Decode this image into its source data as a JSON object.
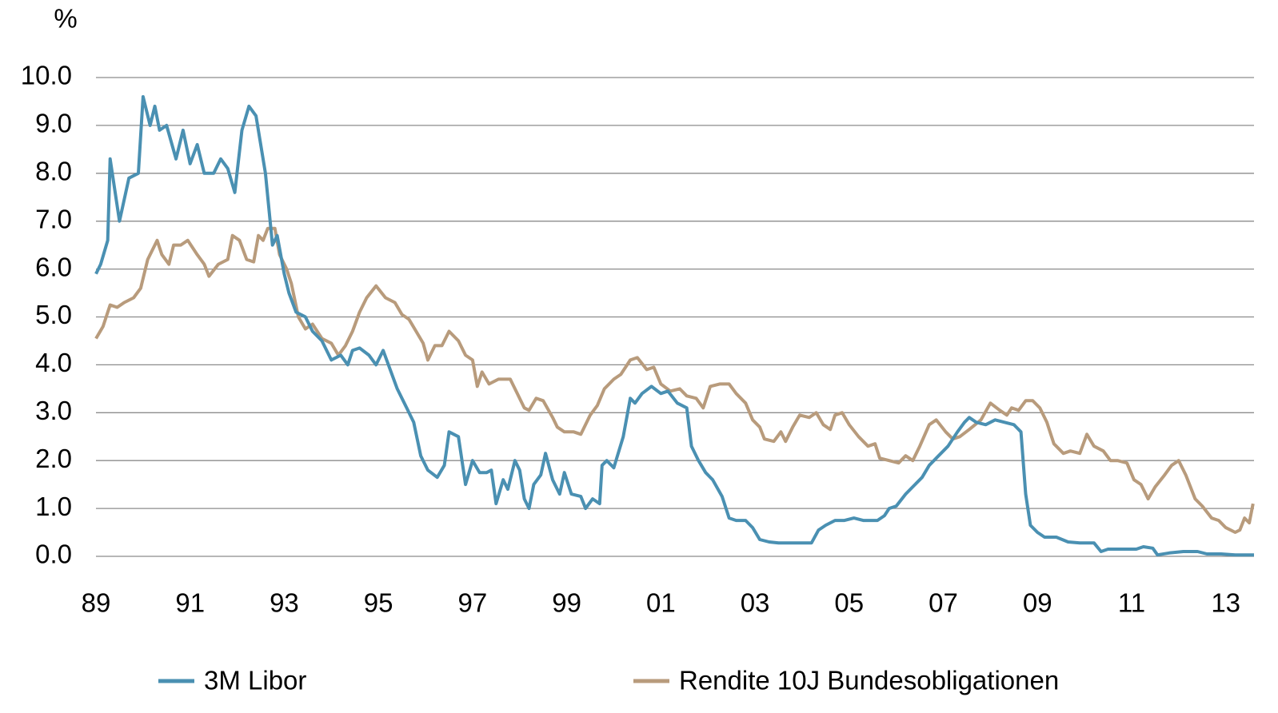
{
  "chart_data": {
    "type": "line",
    "ylabel": "%",
    "xlim": [
      1989,
      2013.6
    ],
    "xticks": [
      {
        "value": 1989,
        "label": "89"
      },
      {
        "value": 1991,
        "label": "91"
      },
      {
        "value": 1993,
        "label": "93"
      },
      {
        "value": 1995,
        "label": "95"
      },
      {
        "value": 1997,
        "label": "97"
      },
      {
        "value": 1999,
        "label": "99"
      },
      {
        "value": 2001,
        "label": "01"
      },
      {
        "value": 2003,
        "label": "03"
      },
      {
        "value": 2005,
        "label": "05"
      },
      {
        "value": 2007,
        "label": "07"
      },
      {
        "value": 2009,
        "label": "09"
      },
      {
        "value": 2011,
        "label": "11"
      },
      {
        "value": 2013,
        "label": "13"
      }
    ],
    "ylim": [
      0,
      10
    ],
    "yticks": [
      {
        "value": 0,
        "label": "0.0"
      },
      {
        "value": 1,
        "label": "1.0"
      },
      {
        "value": 2,
        "label": "2.0"
      },
      {
        "value": 3,
        "label": "3.0"
      },
      {
        "value": 4,
        "label": "4.0"
      },
      {
        "value": 5,
        "label": "5.0"
      },
      {
        "value": 6,
        "label": "6.0"
      },
      {
        "value": 7,
        "label": "7.0"
      },
      {
        "value": 8,
        "label": "8.0"
      },
      {
        "value": 9,
        "label": "9.0"
      },
      {
        "value": 10,
        "label": "10.0"
      }
    ],
    "grid": true,
    "legend": "bottom",
    "series": [
      {
        "name": "3M Libor",
        "color": "#4a90b2",
        "x": [
          1989.0,
          1989.1,
          1989.25,
          1989.3,
          1989.5,
          1989.7,
          1989.9,
          1990.0,
          1990.15,
          1990.25,
          1990.35,
          1990.5,
          1990.7,
          1990.85,
          1991.0,
          1991.15,
          1991.3,
          1991.5,
          1991.65,
          1991.8,
          1991.95,
          1992.1,
          1992.25,
          1992.4,
          1992.6,
          1992.75,
          1992.85,
          1993.0,
          1993.1,
          1993.25,
          1993.45,
          1993.6,
          1993.8,
          1994.0,
          1994.2,
          1994.35,
          1994.45,
          1994.6,
          1994.8,
          1994.95,
          1995.1,
          1995.25,
          1995.4,
          1995.6,
          1995.75,
          1995.9,
          1996.05,
          1996.25,
          1996.4,
          1996.5,
          1996.7,
          1996.85,
          1997.0,
          1997.15,
          1997.3,
          1997.4,
          1997.5,
          1997.65,
          1997.75,
          1997.9,
          1998.0,
          1998.1,
          1998.2,
          1998.3,
          1998.45,
          1998.55,
          1998.7,
          1998.85,
          1998.95,
          1999.1,
          1999.3,
          1999.4,
          1999.55,
          1999.7,
          1999.75,
          1999.85,
          2000.0,
          2000.2,
          2000.35,
          2000.45,
          2000.6,
          2000.8,
          2001.0,
          2001.15,
          2001.35,
          2001.55,
          2001.65,
          2001.8,
          2001.95,
          2002.1,
          2002.3,
          2002.45,
          2002.6,
          2002.8,
          2002.95,
          2003.1,
          2003.3,
          2003.5,
          2003.8,
          2004.2,
          2004.35,
          2004.5,
          2004.7,
          2004.9,
          2005.1,
          2005.3,
          2005.6,
          2005.75,
          2005.85,
          2006.0,
          2006.2,
          2006.4,
          2006.55,
          2006.7,
          2006.9,
          2007.1,
          2007.3,
          2007.45,
          2007.55,
          2007.7,
          2007.9,
          2008.1,
          2008.3,
          2008.5,
          2008.65,
          2008.75,
          2008.85,
          2009.0,
          2009.15,
          2009.4,
          2009.65,
          2009.9,
          2010.2,
          2010.35,
          2010.5,
          2010.8,
          2011.1,
          2011.25,
          2011.45,
          2011.55,
          2011.8,
          2012.1,
          2012.4,
          2012.6,
          2012.9,
          2013.2,
          2013.6
        ],
        "values": [
          5.9,
          6.1,
          6.6,
          8.3,
          7.0,
          7.9,
          8.0,
          9.6,
          9.0,
          9.4,
          8.9,
          9.0,
          8.3,
          8.9,
          8.2,
          8.6,
          8.0,
          8.0,
          8.3,
          8.1,
          7.6,
          8.9,
          9.4,
          9.2,
          8.0,
          6.5,
          6.7,
          5.9,
          5.5,
          5.1,
          5.0,
          4.7,
          4.5,
          4.1,
          4.2,
          4.0,
          4.3,
          4.35,
          4.2,
          4.0,
          4.3,
          3.9,
          3.5,
          3.1,
          2.8,
          2.1,
          1.8,
          1.65,
          1.9,
          2.6,
          2.5,
          1.5,
          2.0,
          1.75,
          1.75,
          1.8,
          1.1,
          1.6,
          1.4,
          2.0,
          1.8,
          1.2,
          1.0,
          1.5,
          1.7,
          2.15,
          1.6,
          1.3,
          1.75,
          1.3,
          1.25,
          1.0,
          1.2,
          1.1,
          1.9,
          2.0,
          1.85,
          2.5,
          3.3,
          3.2,
          3.4,
          3.55,
          3.4,
          3.45,
          3.2,
          3.1,
          2.3,
          2.0,
          1.75,
          1.6,
          1.25,
          0.8,
          0.75,
          0.75,
          0.6,
          0.35,
          0.3,
          0.28,
          0.28,
          0.28,
          0.55,
          0.65,
          0.75,
          0.75,
          0.8,
          0.75,
          0.75,
          0.85,
          1.0,
          1.05,
          1.3,
          1.5,
          1.65,
          1.9,
          2.1,
          2.3,
          2.6,
          2.8,
          2.9,
          2.8,
          2.75,
          2.85,
          2.8,
          2.75,
          2.6,
          1.3,
          0.65,
          0.5,
          0.4,
          0.4,
          0.3,
          0.28,
          0.28,
          0.1,
          0.15,
          0.15,
          0.15,
          0.2,
          0.17,
          0.03,
          0.07,
          0.1,
          0.1,
          0.05,
          0.05,
          0.03,
          0.03
        ]
      },
      {
        "name": "Rendite 10J Bundesobligationen",
        "color": "#b89b7c",
        "x": [
          1989.0,
          1989.15,
          1989.3,
          1989.45,
          1989.6,
          1989.8,
          1989.95,
          1990.1,
          1990.3,
          1990.4,
          1990.55,
          1990.65,
          1990.8,
          1990.95,
          1991.15,
          1991.3,
          1991.4,
          1991.6,
          1991.8,
          1991.9,
          1992.05,
          1992.2,
          1992.35,
          1992.45,
          1992.55,
          1992.65,
          1992.8,
          1992.9,
          1993.05,
          1993.15,
          1993.3,
          1993.45,
          1993.6,
          1993.8,
          1994.0,
          1994.15,
          1994.3,
          1994.45,
          1994.6,
          1994.75,
          1994.95,
          1995.15,
          1995.35,
          1995.5,
          1995.65,
          1995.8,
          1995.95,
          1996.05,
          1996.2,
          1996.35,
          1996.5,
          1996.7,
          1996.85,
          1997.0,
          1997.1,
          1997.2,
          1997.35,
          1997.55,
          1997.8,
          1997.95,
          1998.1,
          1998.2,
          1998.35,
          1998.5,
          1998.7,
          1998.8,
          1998.95,
          1999.15,
          1999.3,
          1999.5,
          1999.65,
          1999.8,
          2000.0,
          2000.15,
          2000.35,
          2000.5,
          2000.7,
          2000.85,
          2001.0,
          2001.2,
          2001.4,
          2001.55,
          2001.75,
          2001.9,
          2002.05,
          2002.25,
          2002.45,
          2002.6,
          2002.8,
          2002.95,
          2003.1,
          2003.2,
          2003.4,
          2003.55,
          2003.65,
          2003.8,
          2003.95,
          2004.15,
          2004.3,
          2004.45,
          2004.6,
          2004.7,
          2004.85,
          2005.0,
          2005.2,
          2005.4,
          2005.55,
          2005.65,
          2005.85,
          2006.05,
          2006.2,
          2006.35,
          2006.5,
          2006.7,
          2006.85,
          2007.05,
          2007.2,
          2007.35,
          2007.55,
          2007.8,
          2008.0,
          2008.2,
          2008.35,
          2008.45,
          2008.6,
          2008.75,
          2008.9,
          2009.05,
          2009.2,
          2009.35,
          2009.55,
          2009.7,
          2009.9,
          2010.05,
          2010.2,
          2010.4,
          2010.55,
          2010.7,
          2010.9,
          2011.05,
          2011.2,
          2011.35,
          2011.5,
          2011.7,
          2011.85,
          2012.0,
          2012.15,
          2012.35,
          2012.5,
          2012.7,
          2012.85,
          2013.0,
          2013.2,
          2013.3,
          2013.4,
          2013.5,
          2013.58
        ],
        "values": [
          4.55,
          4.8,
          5.25,
          5.2,
          5.3,
          5.4,
          5.6,
          6.2,
          6.6,
          6.3,
          6.1,
          6.5,
          6.5,
          6.6,
          6.3,
          6.1,
          5.85,
          6.1,
          6.2,
          6.7,
          6.6,
          6.2,
          6.15,
          6.7,
          6.6,
          6.85,
          6.85,
          6.3,
          6.0,
          5.7,
          5.0,
          4.75,
          4.85,
          4.55,
          4.45,
          4.2,
          4.4,
          4.7,
          5.1,
          5.4,
          5.65,
          5.4,
          5.3,
          5.05,
          4.95,
          4.7,
          4.45,
          4.1,
          4.4,
          4.4,
          4.7,
          4.5,
          4.2,
          4.1,
          3.55,
          3.85,
          3.6,
          3.7,
          3.7,
          3.4,
          3.1,
          3.05,
          3.3,
          3.25,
          2.9,
          2.7,
          2.6,
          2.6,
          2.55,
          2.95,
          3.15,
          3.5,
          3.7,
          3.8,
          4.1,
          4.15,
          3.9,
          3.95,
          3.6,
          3.45,
          3.5,
          3.35,
          3.3,
          3.1,
          3.55,
          3.6,
          3.6,
          3.4,
          3.2,
          2.85,
          2.7,
          2.45,
          2.4,
          2.6,
          2.4,
          2.7,
          2.95,
          2.9,
          3.0,
          2.75,
          2.65,
          2.95,
          3.0,
          2.75,
          2.5,
          2.3,
          2.35,
          2.05,
          2.0,
          1.95,
          2.1,
          2.0,
          2.3,
          2.75,
          2.85,
          2.6,
          2.45,
          2.5,
          2.65,
          2.85,
          3.2,
          3.05,
          2.95,
          3.1,
          3.05,
          3.25,
          3.25,
          3.1,
          2.8,
          2.35,
          2.15,
          2.2,
          2.15,
          2.55,
          2.3,
          2.2,
          2.0,
          2.0,
          1.95,
          1.6,
          1.5,
          1.2,
          1.45,
          1.7,
          1.9,
          2.0,
          1.7,
          1.2,
          1.05,
          0.8,
          0.75,
          0.6,
          0.5,
          0.55,
          0.8,
          0.7,
          1.1
        ]
      }
    ]
  }
}
